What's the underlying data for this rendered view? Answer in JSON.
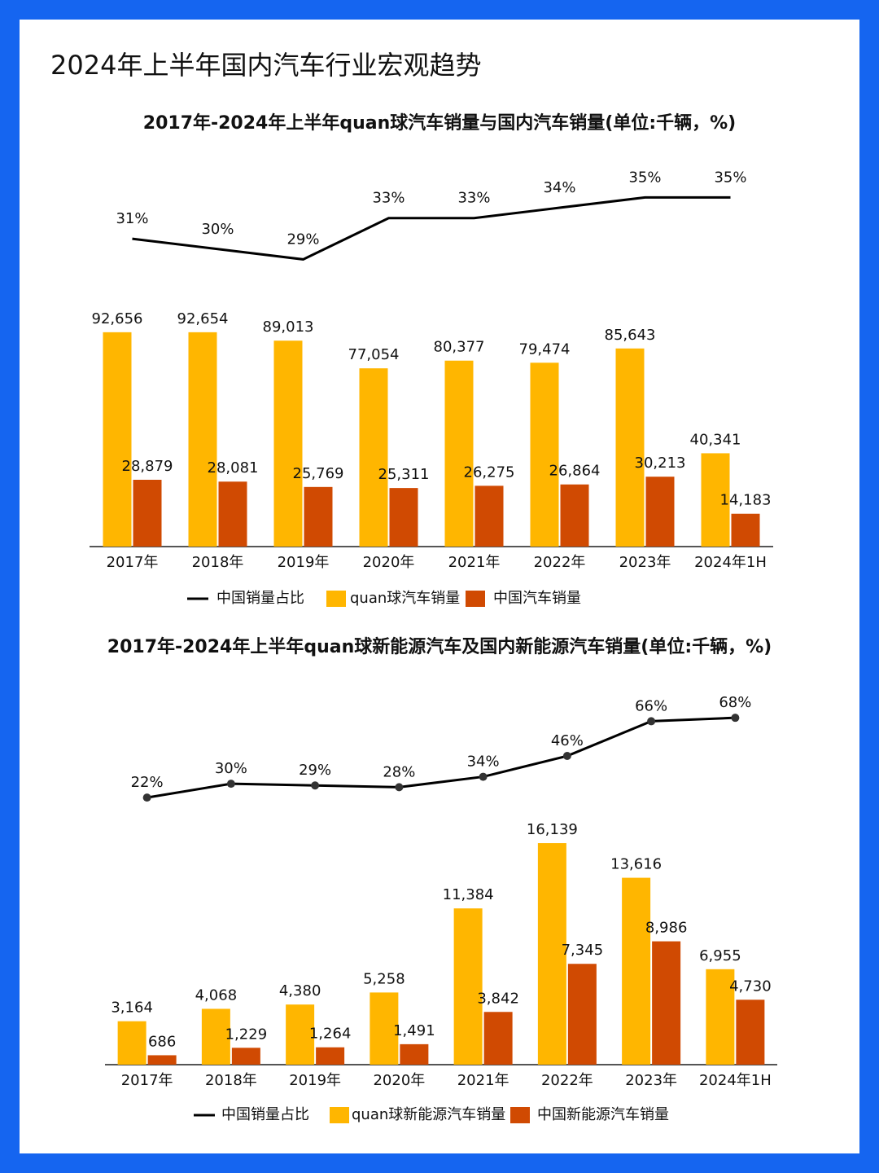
{
  "header": {
    "title": "2024年上半年国内汽车行业宏观趋势"
  },
  "chart_data": [
    {
      "type": "bar",
      "title": "2017年-2024年上半年quan球汽车销量与国内汽车销量(单位:千辆，%)",
      "categories": [
        "2017年",
        "2018年",
        "2019年",
        "2020年",
        "2021年",
        "2022年",
        "2023年",
        "2024年1H"
      ],
      "series": [
        {
          "name": "中国销量占比",
          "type": "line",
          "axis": "y2",
          "color": "#000000",
          "markers": false,
          "values": [
            31,
            30,
            29,
            33,
            33,
            34,
            35,
            35
          ],
          "value_labels": [
            "31%",
            "30%",
            "29%",
            "33%",
            "33%",
            "34%",
            "35%",
            "35%"
          ]
        },
        {
          "name": "quan球汽车销量",
          "color": "#FFB600",
          "values": [
            92656,
            92654,
            89013,
            77054,
            80377,
            79474,
            85643,
            40341
          ],
          "value_labels": [
            "92,656",
            "92,654",
            "89,013",
            "77,054",
            "80,377",
            "79,474",
            "85,643",
            "40,341"
          ]
        },
        {
          "name": "中国汽车销量",
          "color": "#D04A02",
          "values": [
            28879,
            28081,
            25769,
            25311,
            26275,
            26864,
            30213,
            14183
          ],
          "value_labels": [
            "28,879",
            "28,081",
            "25,769",
            "25,311",
            "26,275",
            "26,864",
            "30,213",
            "14,183"
          ]
        }
      ],
      "ylim": [
        0,
        100000
      ],
      "y2lim": [
        0,
        40
      ]
    },
    {
      "type": "bar",
      "title": "2017年-2024年上半年quan球新能源汽车及国内新能源汽车销量(单位:千辆，%)",
      "categories": [
        "2017年",
        "2018年",
        "2019年",
        "2020年",
        "2021年",
        "2022年",
        "2023年",
        "2024年1H"
      ],
      "series": [
        {
          "name": "中国销量占比",
          "type": "line",
          "axis": "y2",
          "color": "#000000",
          "markers": true,
          "values": [
            22,
            30,
            29,
            28,
            34,
            46,
            66,
            68
          ],
          "value_labels": [
            "22%",
            "30%",
            "29%",
            "28%",
            "34%",
            "46%",
            "66%",
            "68%"
          ]
        },
        {
          "name": "quan球新能源汽车销量",
          "color": "#FFB600",
          "values": [
            3164,
            4068,
            4380,
            5258,
            11384,
            16139,
            13616,
            6955
          ],
          "value_labels": [
            "3,164",
            "4,068",
            "4,380",
            "5,258",
            "11,384",
            "16,139",
            "13,616",
            "6,955"
          ]
        },
        {
          "name": "中国新能源汽车销量",
          "color": "#D04A02",
          "values": [
            686,
            1229,
            1264,
            1491,
            3842,
            7345,
            8986,
            4730
          ],
          "value_labels": [
            "686",
            "1,229",
            "1,264",
            "1,491",
            "3,842",
            "7,345",
            "8,986",
            "4,730"
          ]
        }
      ],
      "ylim": [
        0,
        20000
      ],
      "y2lim": [
        0,
        100
      ]
    }
  ]
}
